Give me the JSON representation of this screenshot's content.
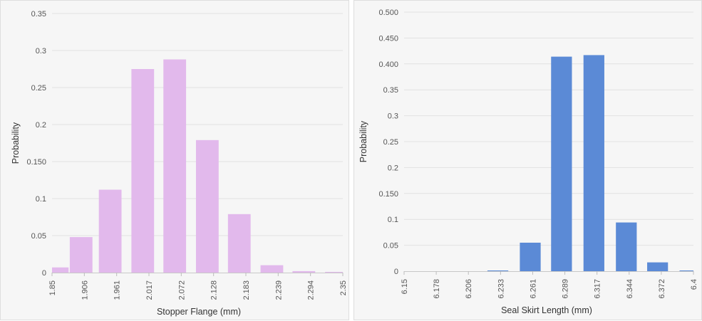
{
  "chart_data": [
    {
      "type": "bar",
      "xlabel": "Stopper Flange (mm)",
      "ylabel": "Probability",
      "ylim": [
        0,
        0.35
      ],
      "yticks": [
        "0",
        "0.05",
        "0.1",
        "0.150",
        "0.2",
        "0.25",
        "0.3",
        "0.35"
      ],
      "xticks": [
        "1.85",
        "1.906",
        "1.961",
        "2.017",
        "2.072",
        "2.128",
        "2.183",
        "2.239",
        "2.294",
        "2.35"
      ],
      "xrange": [
        1.85,
        2.35
      ],
      "bins": [
        {
          "center": 1.859,
          "value": 0.007
        },
        {
          "center": 1.9,
          "value": 0.048
        },
        {
          "center": 1.95,
          "value": 0.112
        },
        {
          "center": 2.006,
          "value": 0.275
        },
        {
          "center": 2.061,
          "value": 0.288
        },
        {
          "center": 2.117,
          "value": 0.179
        },
        {
          "center": 2.172,
          "value": 0.079
        },
        {
          "center": 2.228,
          "value": 0.01
        },
        {
          "center": 2.283,
          "value": 0.002
        },
        {
          "center": 2.339,
          "value": 0.001
        }
      ],
      "color": "#e2b9ec",
      "grid": true
    },
    {
      "type": "bar",
      "xlabel": "Seal Skirt Length (mm)",
      "ylabel": "Probability",
      "ylim": [
        0,
        0.5
      ],
      "yticks": [
        "0",
        "0.05",
        "0.1",
        "0.150",
        "0.2",
        "0.25",
        "0.3",
        "0.35",
        "0.400",
        "0.450",
        "0.500"
      ],
      "xticks": [
        "6.15",
        "6.178",
        "6.206",
        "6.233",
        "6.261",
        "6.289",
        "6.317",
        "6.344",
        "6.372",
        "6.4"
      ],
      "xrange": [
        6.15,
        6.4
      ],
      "bins": [
        {
          "center": 6.164,
          "value": 0.0
        },
        {
          "center": 6.192,
          "value": 0.0
        },
        {
          "center": 6.219,
          "value": 0.0
        },
        {
          "center": 6.231,
          "value": 0.001
        },
        {
          "center": 6.259,
          "value": 0.055
        },
        {
          "center": 6.286,
          "value": 0.414
        },
        {
          "center": 6.314,
          "value": 0.417
        },
        {
          "center": 6.342,
          "value": 0.094
        },
        {
          "center": 6.369,
          "value": 0.017
        },
        {
          "center": 6.397,
          "value": 0.001
        }
      ],
      "color": "#5b8ad6",
      "grid": true
    }
  ]
}
